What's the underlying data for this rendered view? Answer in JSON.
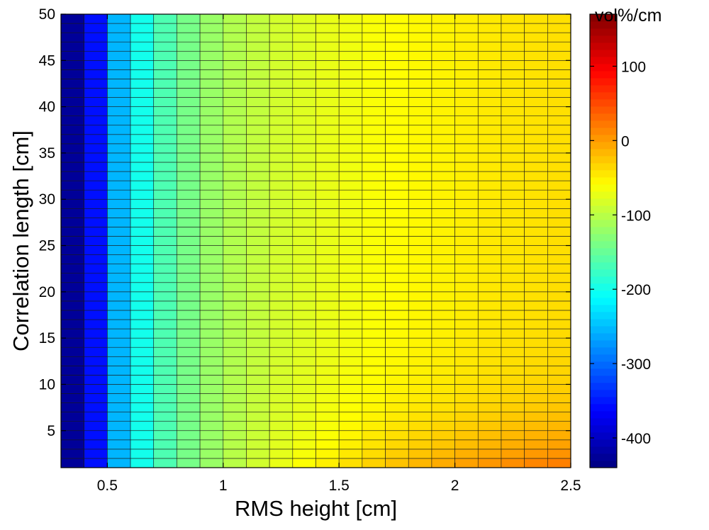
{
  "chart_data": {
    "type": "heatmap",
    "title": "",
    "xlabel": "RMS height [cm]",
    "ylabel": "Correlation length [cm]",
    "xlim": [
      0.3,
      2.5
    ],
    "ylim": [
      1,
      50
    ],
    "x_ticks": [
      "0.5",
      "1",
      "1.5",
      "2",
      "2.5"
    ],
    "y_ticks": [
      "5",
      "10",
      "15",
      "20",
      "25",
      "30",
      "35",
      "40",
      "45",
      "50"
    ],
    "x_bin_edges": [
      0.3,
      0.4,
      0.5,
      0.6,
      0.7,
      0.8,
      0.9,
      1.0,
      1.1,
      1.2,
      1.3,
      1.4,
      1.5,
      1.6,
      1.7,
      1.8,
      1.9,
      2.0,
      2.1,
      2.2,
      2.3,
      2.4,
      2.5
    ],
    "y_bin_count": 49,
    "column_values_at_large_correlation_length": [
      -425,
      -355,
      -255,
      -200,
      -165,
      -140,
      -120,
      -105,
      -95,
      -85,
      -78,
      -72,
      -67,
      -62,
      -58,
      -55,
      -52,
      -49,
      -46,
      -44,
      -42,
      -40
    ],
    "column_values_at_smallest_correlation_length": [
      -425,
      -355,
      -255,
      -200,
      -165,
      -140,
      -120,
      -100,
      -85,
      -70,
      -58,
      -47,
      -37,
      -28,
      -19,
      -11,
      -4,
      3,
      9,
      15,
      20,
      24
    ],
    "colorbar": {
      "unit": "vol%/cm",
      "min": -440,
      "max": 170,
      "ticks": [
        "-400",
        "-300",
        "-200",
        "-100",
        "0",
        "100"
      ]
    }
  }
}
